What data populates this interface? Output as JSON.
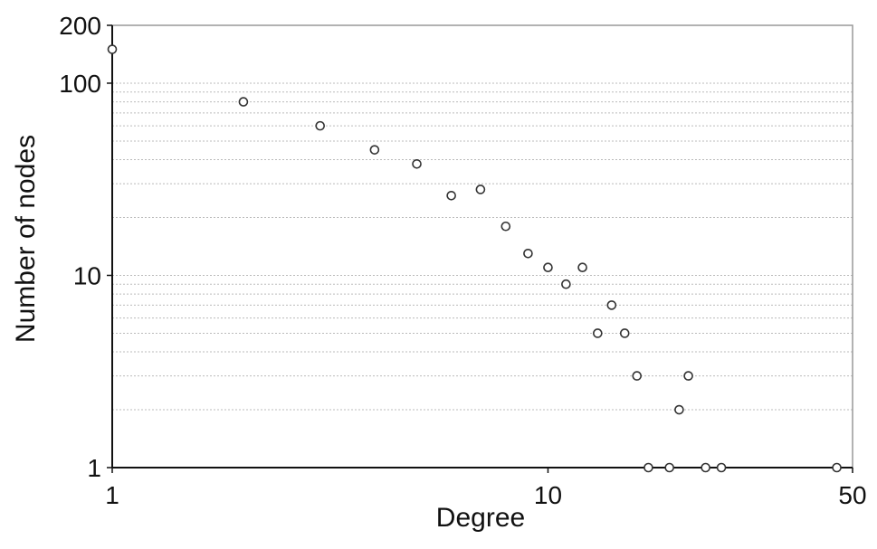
{
  "chart_data": {
    "type": "scatter",
    "title": "",
    "xlabel": "Degree",
    "ylabel": "Number of nodes",
    "xscale": "log",
    "yscale": "log",
    "xlim": [
      1,
      50
    ],
    "ylim": [
      1,
      200
    ],
    "xticks": [
      1,
      10,
      50
    ],
    "xtick_labels": [
      "1",
      "10",
      "50"
    ],
    "yticks": [
      1,
      10,
      100,
      200
    ],
    "ytick_labels": [
      "1",
      "10",
      "100",
      "200"
    ],
    "grid": "horizontal dotted at minor log ticks",
    "legend": "none",
    "marker": "open circle",
    "colors": {
      "marker": "#333333",
      "grid": "#bbbbbb",
      "frame": "#999999",
      "axis": "#111111"
    },
    "series": [
      {
        "points": [
          {
            "x": 1,
            "y": 150
          },
          {
            "x": 2,
            "y": 80
          },
          {
            "x": 3,
            "y": 60
          },
          {
            "x": 4,
            "y": 45
          },
          {
            "x": 5,
            "y": 38
          },
          {
            "x": 6,
            "y": 26
          },
          {
            "x": 7,
            "y": 28
          },
          {
            "x": 8,
            "y": 18
          },
          {
            "x": 9,
            "y": 13
          },
          {
            "x": 10,
            "y": 11
          },
          {
            "x": 11,
            "y": 9
          },
          {
            "x": 12,
            "y": 11
          },
          {
            "x": 13,
            "y": 5
          },
          {
            "x": 14,
            "y": 7
          },
          {
            "x": 15,
            "y": 5
          },
          {
            "x": 16,
            "y": 3
          },
          {
            "x": 17,
            "y": 1
          },
          {
            "x": 19,
            "y": 1
          },
          {
            "x": 20,
            "y": 2
          },
          {
            "x": 21,
            "y": 3
          },
          {
            "x": 23,
            "y": 1
          },
          {
            "x": 25,
            "y": 1
          },
          {
            "x": 46,
            "y": 1
          }
        ]
      }
    ]
  }
}
